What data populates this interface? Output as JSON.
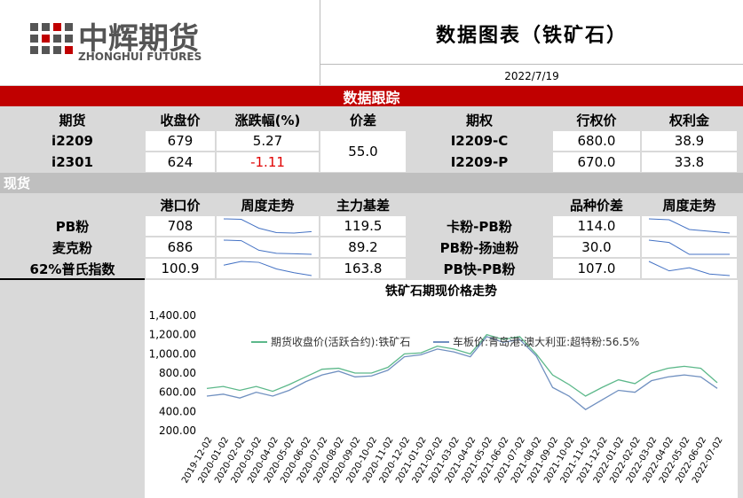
{
  "header": {
    "logo_name": "中辉期货",
    "logo_sub": "ZHONGHUI FUTURES",
    "title": "数据图表（铁矿石）",
    "date": "2022/7/19"
  },
  "futures": {
    "section": "数据跟踪",
    "headers": [
      "期货",
      "收盘价",
      "涨跌幅(%)",
      "价差",
      "期权",
      "行权价",
      "权利金"
    ],
    "spread": "55.0",
    "rows": [
      {
        "contract": "i2209",
        "close": "679",
        "change": "5.27",
        "option": "I2209-C",
        "strike": "680.0",
        "premium": "38.9"
      },
      {
        "contract": "i2301",
        "close": "624",
        "change": "-1.11",
        "option": "I2209-P",
        "strike": "670.0",
        "premium": "33.8"
      }
    ]
  },
  "spot": {
    "section": "现货",
    "headers": [
      "港口价",
      "周度走势",
      "主力基差",
      "品种价差",
      "周度走势"
    ],
    "rows": [
      {
        "name": "PB粉",
        "port_price": "708",
        "trend": [
          760,
          758,
          722,
          704,
          702,
          708
        ],
        "basis": "119.5",
        "spread_name": "卡粉-PB粉",
        "spread": "114.0",
        "spread_trend": [
          130,
          129,
          118,
          116,
          114
        ]
      },
      {
        "name": "麦克粉",
        "port_price": "686",
        "trend": [
          742,
          740,
          702,
          690,
          688,
          686
        ],
        "basis": "89.2",
        "spread_name": "PB粉-扬迪粉",
        "spread": "30.0",
        "spread_trend": [
          42,
          40,
          30,
          30,
          30
        ]
      },
      {
        "name": "62%普氏指数",
        "port_price": "100.9",
        "trend": [
          112,
          116,
          115,
          108,
          104,
          100.9
        ],
        "basis": "163.8",
        "spread_name": "PB快-PB粉",
        "spread": "107.0",
        "spread_trend": [
          116,
          110,
          112,
          108,
          107
        ]
      }
    ]
  },
  "chart_data": {
    "type": "line",
    "title": "铁矿石期现价格走势",
    "categories": [
      "2019-12-02",
      "2020-01-02",
      "2020-02-02",
      "2020-03-02",
      "2020-04-02",
      "2020-05-02",
      "2020-06-02",
      "2020-07-02",
      "2020-08-02",
      "2020-09-02",
      "2020-10-02",
      "2020-11-02",
      "2020-12-02",
      "2021-01-02",
      "2021-02-02",
      "2021-03-02",
      "2021-04-02",
      "2021-05-02",
      "2021-06-02",
      "2021-07-02",
      "2021-08-02",
      "2021-09-02",
      "2021-10-02",
      "2021-11-02",
      "2021-12-02",
      "2022-01-02",
      "2022-02-02",
      "2022-03-02",
      "2022-04-02",
      "2022-05-02",
      "2022-06-02",
      "2022-07-02"
    ],
    "series": [
      {
        "name": "期货收盘价(活跃合约):铁矿石",
        "color": "#5cb88a",
        "values": [
          640,
          660,
          620,
          660,
          610,
          680,
          760,
          840,
          850,
          800,
          800,
          860,
          1000,
          1010,
          1080,
          1050,
          1000,
          1200,
          1150,
          1180,
          1000,
          780,
          680,
          560,
          650,
          730,
          690,
          800,
          850,
          870,
          850,
          700
        ]
      },
      {
        "name": "车板价:青岛港:澳大利亚:超特粉:56.5%",
        "color": "#7090c0",
        "values": [
          560,
          580,
          540,
          600,
          560,
          620,
          710,
          780,
          820,
          760,
          770,
          830,
          970,
          990,
          1050,
          1020,
          970,
          1180,
          1120,
          1150,
          980,
          650,
          560,
          420,
          520,
          620,
          600,
          720,
          760,
          780,
          760,
          640
        ]
      }
    ],
    "ylim": [
      200,
      1400
    ],
    "yticks": [
      {
        "value": 200,
        "label": "200.00"
      },
      {
        "value": 400,
        "label": "400.00"
      },
      {
        "value": 600,
        "label": "600.00"
      },
      {
        "value": 800,
        "label": "800.00"
      },
      {
        "value": 1000,
        "label": "1,000.00"
      },
      {
        "value": 1200,
        "label": "1,200.00"
      },
      {
        "value": 1400,
        "label": "1,400.00"
      }
    ],
    "grid": false
  }
}
